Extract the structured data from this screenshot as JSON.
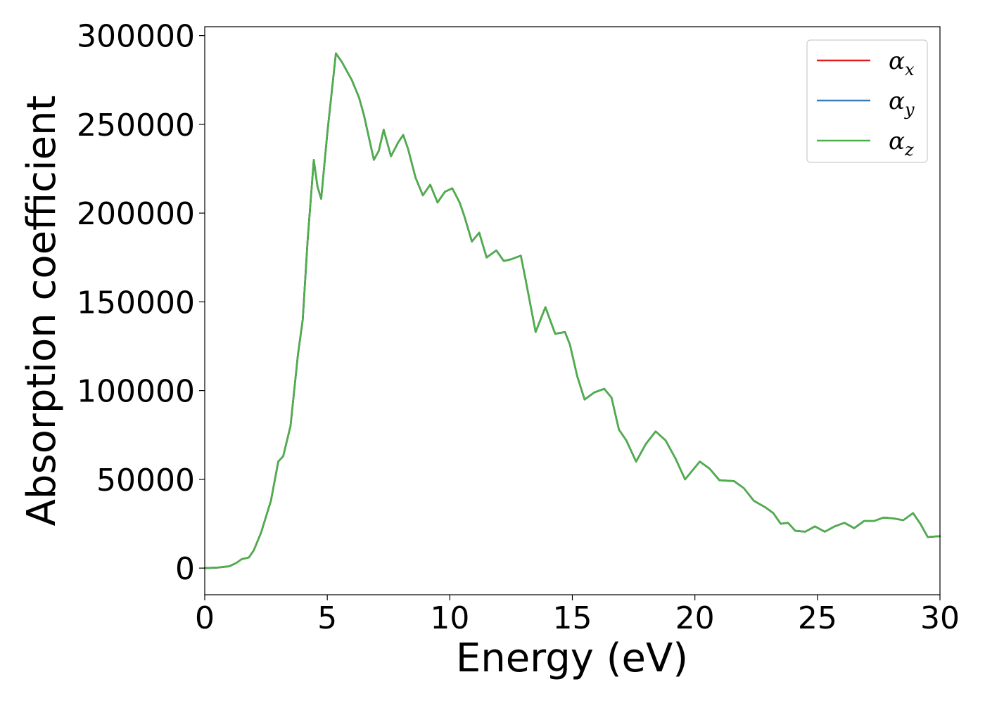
{
  "chart_data": {
    "type": "line",
    "title": "",
    "xlabel": "Energy (eV)",
    "ylabel": "Absorption coefficient",
    "xlim": [
      0,
      30
    ],
    "ylim": [
      -15000,
      305000
    ],
    "xticks": [
      0,
      5,
      10,
      15,
      20,
      25,
      30
    ],
    "yticks": [
      0,
      50000,
      100000,
      150000,
      200000,
      250000,
      300000
    ],
    "grid": false,
    "legend_position": "top-right",
    "series": [
      {
        "name": "α_x",
        "symbol": "α",
        "subscript": "x",
        "color": "#e41a1c",
        "x": [
          0,
          0.5,
          1.0,
          1.3,
          1.5,
          1.8,
          2.0,
          2.3,
          2.7,
          3.0,
          3.2,
          3.5,
          3.8,
          4.0,
          4.2,
          4.45,
          4.6,
          4.75,
          5.0,
          5.35,
          5.6,
          6.0,
          6.3,
          6.5,
          6.9,
          7.1,
          7.3,
          7.6,
          7.9,
          8.1,
          8.3,
          8.6,
          8.9,
          9.2,
          9.5,
          9.8,
          10.1,
          10.4,
          10.6,
          10.9,
          11.2,
          11.5,
          11.9,
          12.2,
          12.5,
          12.9,
          13.1,
          13.5,
          13.9,
          14.3,
          14.7,
          14.9,
          15.2,
          15.5,
          15.9,
          16.3,
          16.6,
          16.9,
          17.2,
          17.6,
          18.0,
          18.4,
          18.8,
          19.2,
          19.6,
          20.2,
          20.6,
          21.0,
          21.6,
          22.0,
          22.4,
          22.9,
          23.2,
          23.5,
          23.8,
          24.1,
          24.5,
          24.9,
          25.3,
          25.7,
          26.1,
          26.5,
          26.9,
          27.3,
          27.7,
          28.1,
          28.5,
          28.9,
          29.2,
          29.5,
          30.0
        ],
        "values": [
          0,
          300,
          1000,
          3000,
          5000,
          6000,
          10000,
          20000,
          38000,
          60000,
          63000,
          80000,
          120000,
          140000,
          185000,
          230000,
          215000,
          208000,
          245000,
          290000,
          285000,
          275000,
          265000,
          255000,
          230000,
          235000,
          247000,
          232000,
          240000,
          244000,
          236000,
          220000,
          210000,
          216000,
          206000,
          212000,
          214000,
          206000,
          198000,
          184000,
          189000,
          175000,
          179000,
          173000,
          174000,
          176000,
          162000,
          133000,
          147000,
          132000,
          133000,
          126000,
          108000,
          95000,
          99000,
          101000,
          96000,
          78000,
          72000,
          60000,
          70000,
          77000,
          72000,
          62000,
          50000,
          60000,
          56000,
          49500,
          49000,
          45000,
          38000,
          34000,
          31000,
          25000,
          25500,
          21000,
          20500,
          23500,
          20500,
          23500,
          25500,
          22500,
          26500,
          26500,
          28500,
          28000,
          27000,
          31000,
          25000,
          17500,
          18000
        ]
      },
      {
        "name": "α_y",
        "symbol": "α",
        "subscript": "y",
        "color": "#377eb8",
        "x": [
          0,
          0.5,
          1.0,
          1.3,
          1.5,
          1.8,
          2.0,
          2.3,
          2.7,
          3.0,
          3.2,
          3.5,
          3.8,
          4.0,
          4.2,
          4.45,
          4.6,
          4.75,
          5.0,
          5.35,
          5.6,
          6.0,
          6.3,
          6.5,
          6.9,
          7.1,
          7.3,
          7.6,
          7.9,
          8.1,
          8.3,
          8.6,
          8.9,
          9.2,
          9.5,
          9.8,
          10.1,
          10.4,
          10.6,
          10.9,
          11.2,
          11.5,
          11.9,
          12.2,
          12.5,
          12.9,
          13.1,
          13.5,
          13.9,
          14.3,
          14.7,
          14.9,
          15.2,
          15.5,
          15.9,
          16.3,
          16.6,
          16.9,
          17.2,
          17.6,
          18.0,
          18.4,
          18.8,
          19.2,
          19.6,
          20.2,
          20.6,
          21.0,
          21.6,
          22.0,
          22.4,
          22.9,
          23.2,
          23.5,
          23.8,
          24.1,
          24.5,
          24.9,
          25.3,
          25.7,
          26.1,
          26.5,
          26.9,
          27.3,
          27.7,
          28.1,
          28.5,
          28.9,
          29.2,
          29.5,
          30.0
        ],
        "values": [
          0,
          300,
          1000,
          3000,
          5000,
          6000,
          10000,
          20000,
          38000,
          60000,
          63000,
          80000,
          120000,
          140000,
          185000,
          230000,
          215000,
          208000,
          245000,
          290000,
          285000,
          275000,
          265000,
          255000,
          230000,
          235000,
          247000,
          232000,
          240000,
          244000,
          236000,
          220000,
          210000,
          216000,
          206000,
          212000,
          214000,
          206000,
          198000,
          184000,
          189000,
          175000,
          179000,
          173000,
          174000,
          176000,
          162000,
          133000,
          147000,
          132000,
          133000,
          126000,
          108000,
          95000,
          99000,
          101000,
          96000,
          78000,
          72000,
          60000,
          70000,
          77000,
          72000,
          62000,
          50000,
          60000,
          56000,
          49500,
          49000,
          45000,
          38000,
          34000,
          31000,
          25000,
          25500,
          21000,
          20500,
          23500,
          20500,
          23500,
          25500,
          22500,
          26500,
          26500,
          28500,
          28000,
          27000,
          31000,
          25000,
          17500,
          18000
        ]
      },
      {
        "name": "α_z",
        "symbol": "α",
        "subscript": "z",
        "color": "#4daf4a",
        "x": [
          0,
          0.5,
          1.0,
          1.3,
          1.5,
          1.8,
          2.0,
          2.3,
          2.7,
          3.0,
          3.2,
          3.5,
          3.8,
          4.0,
          4.2,
          4.45,
          4.6,
          4.75,
          5.0,
          5.35,
          5.6,
          6.0,
          6.3,
          6.5,
          6.9,
          7.1,
          7.3,
          7.6,
          7.9,
          8.1,
          8.3,
          8.6,
          8.9,
          9.2,
          9.5,
          9.8,
          10.1,
          10.4,
          10.6,
          10.9,
          11.2,
          11.5,
          11.9,
          12.2,
          12.5,
          12.9,
          13.1,
          13.5,
          13.9,
          14.3,
          14.7,
          14.9,
          15.2,
          15.5,
          15.9,
          16.3,
          16.6,
          16.9,
          17.2,
          17.6,
          18.0,
          18.4,
          18.8,
          19.2,
          19.6,
          20.2,
          20.6,
          21.0,
          21.6,
          22.0,
          22.4,
          22.9,
          23.2,
          23.5,
          23.8,
          24.1,
          24.5,
          24.9,
          25.3,
          25.7,
          26.1,
          26.5,
          26.9,
          27.3,
          27.7,
          28.1,
          28.5,
          28.9,
          29.2,
          29.5,
          30.0
        ],
        "values": [
          0,
          300,
          1000,
          3000,
          5000,
          6000,
          10000,
          20000,
          38000,
          60000,
          63000,
          80000,
          120000,
          140000,
          185000,
          230000,
          215000,
          208000,
          245000,
          290000,
          285000,
          275000,
          265000,
          255000,
          230000,
          235000,
          247000,
          232000,
          240000,
          244000,
          236000,
          220000,
          210000,
          216000,
          206000,
          212000,
          214000,
          206000,
          198000,
          184000,
          189000,
          175000,
          179000,
          173000,
          174000,
          176000,
          162000,
          133000,
          147000,
          132000,
          133000,
          126000,
          108000,
          95000,
          99000,
          101000,
          96000,
          78000,
          72000,
          60000,
          70000,
          77000,
          72000,
          62000,
          50000,
          60000,
          56000,
          49500,
          49000,
          45000,
          38000,
          34000,
          31000,
          25000,
          25500,
          21000,
          20500,
          23500,
          20500,
          23500,
          25500,
          22500,
          26500,
          26500,
          28500,
          28000,
          27000,
          31000,
          25000,
          17500,
          18000
        ]
      }
    ]
  }
}
